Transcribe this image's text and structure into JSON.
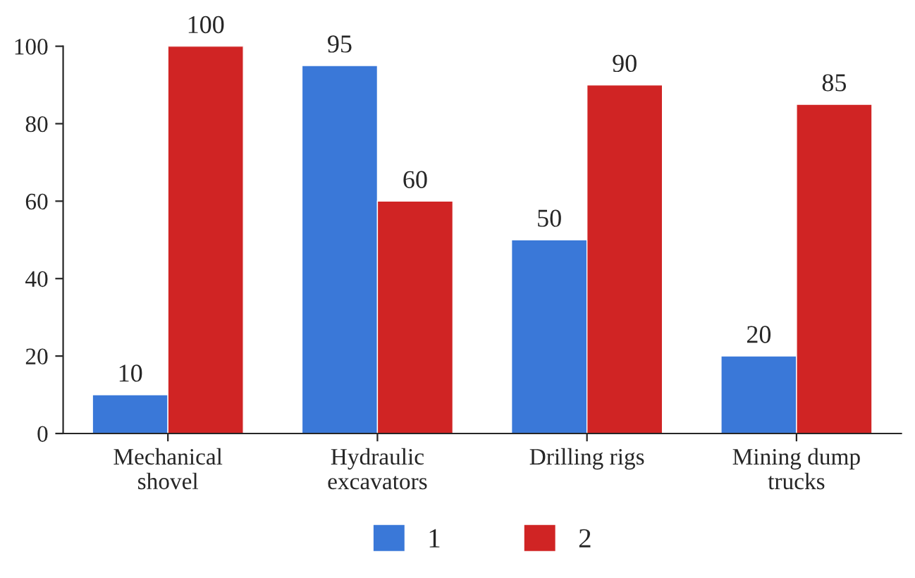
{
  "chart_data": {
    "type": "bar",
    "categories": [
      "Mechanical\nshovel",
      "Hydraulic\nexcavators",
      "Drilling rigs",
      "Mining dump\ntrucks"
    ],
    "series": [
      {
        "name": "1",
        "color": "#3a78d8",
        "values": [
          10,
          95,
          50,
          20
        ]
      },
      {
        "name": "2",
        "color": "#d02424",
        "values": [
          100,
          60,
          90,
          85
        ]
      }
    ],
    "ylim": [
      0,
      100
    ],
    "yticks": [
      0,
      20,
      40,
      60,
      80,
      100
    ],
    "data_labels": true,
    "grid": false,
    "legend": "bottom"
  }
}
